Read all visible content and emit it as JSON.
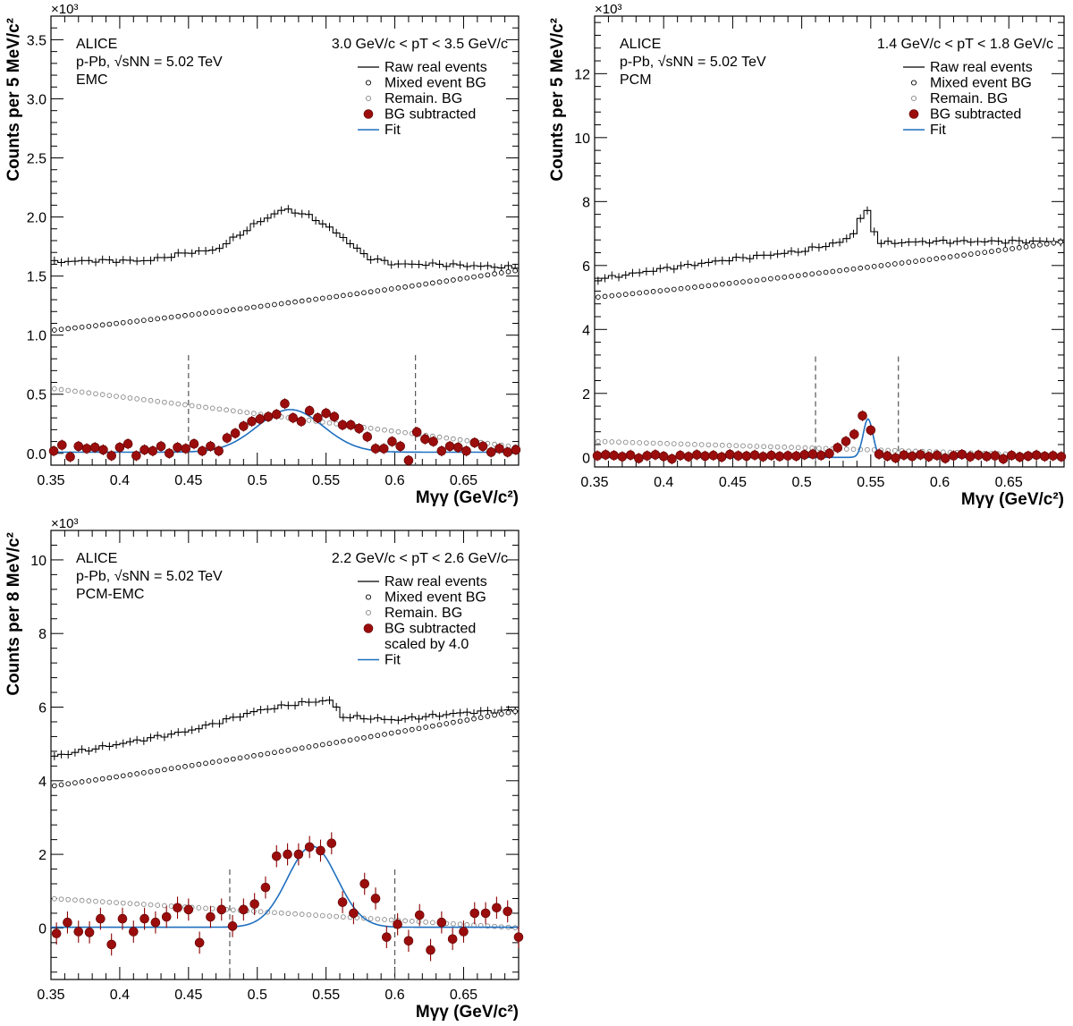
{
  "chart_data": [
    {
      "type": "scatter",
      "panel": "EMC",
      "xlabel": "Mγγ (GeV/c²)",
      "ylabel": "Counts per 5 MeV/c²",
      "multiplier": "×10³",
      "xlim": [
        0.35,
        0.69
      ],
      "ylim": [
        -0.1,
        3.7
      ],
      "xticks": [
        0.35,
        0.4,
        0.45,
        0.5,
        0.55,
        0.6,
        0.65
      ],
      "xtick_labels": [
        "0.35",
        "0.4",
        "0.45",
        "0.5",
        "0.55",
        "0.6",
        "0.65"
      ],
      "yticks": [
        0.0,
        0.5,
        1.0,
        1.5,
        2.0,
        2.5,
        3.0,
        3.5
      ],
      "ytick_labels": [
        "0.0",
        "0.5",
        "1.0",
        "1.5",
        "2.0",
        "2.5",
        "3.0",
        "3.5"
      ],
      "labels": [
        "ALICE",
        "p-Pb, √sNN = 5.02 TeV",
        "EMC"
      ],
      "pt_range": "3.0 GeV/c < pT < 3.5 GeV/c",
      "legend": [
        "Raw real events",
        "Mixed event BG",
        "Remain. BG",
        "BG subtracted",
        "Fit"
      ],
      "integration_window": [
        0.45,
        0.615
      ],
      "raw_anchors": [
        [
          0.35,
          1.62
        ],
        [
          0.38,
          1.63
        ],
        [
          0.42,
          1.63
        ],
        [
          0.45,
          1.7
        ],
        [
          0.47,
          1.72
        ],
        [
          0.5,
          1.95
        ],
        [
          0.52,
          2.07
        ],
        [
          0.54,
          2.0
        ],
        [
          0.56,
          1.85
        ],
        [
          0.58,
          1.66
        ],
        [
          0.6,
          1.6
        ],
        [
          0.63,
          1.6
        ],
        [
          0.69,
          1.57
        ]
      ],
      "mixed_bg": {
        "x0": 0.35,
        "x1": 0.69,
        "y0": 1.04,
        "y1": 1.55,
        "curv": -0.1
      },
      "remain_bg": {
        "x0": 0.35,
        "x1": 0.69,
        "y0": 0.55,
        "y1": 0.05,
        "curv": 0.02
      },
      "fit": {
        "A": 0.36,
        "mu": 0.524,
        "sigma": 0.024,
        "base": 0.01
      },
      "subtracted_x": [
        0.352,
        0.358,
        0.364,
        0.37,
        0.376,
        0.382,
        0.388,
        0.394,
        0.4,
        0.406,
        0.412,
        0.418,
        0.424,
        0.43,
        0.436,
        0.442,
        0.448,
        0.454,
        0.46,
        0.466,
        0.472,
        0.478,
        0.484,
        0.49,
        0.496,
        0.502,
        0.508,
        0.514,
        0.52,
        0.526,
        0.532,
        0.538,
        0.544,
        0.55,
        0.556,
        0.562,
        0.568,
        0.574,
        0.58,
        0.586,
        0.592,
        0.598,
        0.604,
        0.61,
        0.616,
        0.622,
        0.628,
        0.634,
        0.64,
        0.646,
        0.652,
        0.658,
        0.664,
        0.67,
        0.676,
        0.682,
        0.688
      ],
      "subtracted_y": [
        0.02,
        0.07,
        -0.03,
        0.06,
        0.04,
        0.05,
        0.03,
        -0.02,
        0.05,
        0.08,
        -0.02,
        0.03,
        0.02,
        0.06,
        0.0,
        0.05,
        0.04,
        0.08,
        0.02,
        0.06,
        0.02,
        0.13,
        0.17,
        0.23,
        0.27,
        0.29,
        0.31,
        0.33,
        0.42,
        0.3,
        0.27,
        0.36,
        0.3,
        0.34,
        0.31,
        0.24,
        0.24,
        0.21,
        0.14,
        0.04,
        0.04,
        0.1,
        0.06,
        -0.06,
        0.18,
        0.12,
        0.1,
        0.02,
        0.06,
        0.05,
        0.02,
        0.09,
        0.06,
        0.01,
        0.04,
        0.01,
        0.03
      ]
    },
    {
      "type": "scatter",
      "panel": "PCM",
      "xlabel": "Mγγ (GeV/c²)",
      "ylabel": "Counts per 5 MeV/c²",
      "multiplier": "×10³",
      "xlim": [
        0.35,
        0.69
      ],
      "ylim": [
        -0.3,
        13.8
      ],
      "xticks": [
        0.35,
        0.4,
        0.45,
        0.5,
        0.55,
        0.6,
        0.65
      ],
      "xtick_labels": [
        "0.35",
        "0.4",
        "0.45",
        "0.5",
        "0.55",
        "0.6",
        "0.65"
      ],
      "yticks": [
        0,
        2,
        4,
        6,
        8,
        10,
        12
      ],
      "ytick_labels": [
        "0",
        "2",
        "4",
        "6",
        "8",
        "10",
        "12"
      ],
      "labels": [
        "ALICE",
        "p-Pb, √sNN = 5.02 TeV",
        "PCM"
      ],
      "pt_range": "1.4 GeV/c < pT < 1.8 GeV/c",
      "legend": [
        "Raw real events",
        "Mixed event BG",
        "Remain. BG",
        "BG subtracted",
        "Fit"
      ],
      "integration_window": [
        0.51,
        0.57
      ],
      "raw_anchors": [
        [
          0.35,
          5.55
        ],
        [
          0.4,
          5.9
        ],
        [
          0.45,
          6.2
        ],
        [
          0.5,
          6.45
        ],
        [
          0.53,
          6.75
        ],
        [
          0.54,
          7.1
        ],
        [
          0.545,
          7.85
        ],
        [
          0.55,
          7.5
        ],
        [
          0.555,
          6.7
        ],
        [
          0.6,
          6.75
        ],
        [
          0.69,
          6.75
        ]
      ],
      "mixed_bg": {
        "x0": 0.35,
        "x1": 0.69,
        "y0": 5.0,
        "y1": 6.75,
        "curv": -0.3
      },
      "remain_bg": {
        "x0": 0.35,
        "x1": 0.69,
        "y0": 0.5,
        "y1": 0.05,
        "curv": 0.0
      },
      "fit": {
        "A": 1.2,
        "mu": 0.548,
        "sigma": 0.0035,
        "base": 0.0
      },
      "subtracted_x": [
        0.352,
        0.358,
        0.364,
        0.37,
        0.376,
        0.382,
        0.388,
        0.394,
        0.4,
        0.406,
        0.412,
        0.418,
        0.424,
        0.43,
        0.436,
        0.442,
        0.448,
        0.454,
        0.46,
        0.466,
        0.472,
        0.478,
        0.484,
        0.49,
        0.496,
        0.502,
        0.508,
        0.514,
        0.52,
        0.526,
        0.532,
        0.538,
        0.544,
        0.55,
        0.556,
        0.562,
        0.568,
        0.574,
        0.58,
        0.586,
        0.592,
        0.598,
        0.604,
        0.61,
        0.616,
        0.622,
        0.628,
        0.634,
        0.64,
        0.646,
        0.652,
        0.658,
        0.664,
        0.67,
        0.676,
        0.682,
        0.688
      ],
      "subtracted_y": [
        0.05,
        0.08,
        0.06,
        0.02,
        0.07,
        -0.03,
        0.05,
        0.08,
        0.03,
        -0.05,
        0.06,
        0.02,
        0.08,
        0.04,
        0.06,
        0.01,
        0.09,
        0.05,
        0.04,
        0.07,
        0.02,
        0.06,
        0.03,
        0.05,
        0.04,
        0.08,
        0.1,
        0.06,
        0.12,
        0.3,
        0.5,
        0.72,
        1.3,
        0.85,
        0.1,
        0.04,
        -0.02,
        0.07,
        0.03,
        0.08,
        0.02,
        0.06,
        -0.03,
        0.05,
        0.09,
        0.02,
        0.07,
        0.03,
        0.05,
        -0.05,
        0.06,
        0.01,
        0.04,
        0.07,
        0.03,
        0.05,
        0.02
      ]
    },
    {
      "type": "scatter",
      "panel": "PCM-EMC",
      "xlabel": "Mγγ (GeV/c²)",
      "ylabel": "Counts per 8 MeV/c²",
      "multiplier": "×10³",
      "xlim": [
        0.35,
        0.69
      ],
      "ylim": [
        -1.4,
        10.8
      ],
      "xticks": [
        0.35,
        0.4,
        0.45,
        0.5,
        0.55,
        0.6,
        0.65
      ],
      "xtick_labels": [
        "0.35",
        "0.4",
        "0.45",
        "0.5",
        "0.55",
        "0.6",
        "0.65"
      ],
      "yticks": [
        0,
        2,
        4,
        6,
        8,
        10
      ],
      "ytick_labels": [
        "0",
        "2",
        "4",
        "6",
        "8",
        "10"
      ],
      "labels": [
        "ALICE",
        "p-Pb, √sNN = 5.02 TeV",
        "PCM-EMC"
      ],
      "pt_range": "2.2 GeV/c < pT < 2.6 GeV/c",
      "legend": [
        "Raw real events",
        "Mixed event BG",
        "Remain. BG",
        "BG subtracted",
        "scaled by 4.0",
        "Fit"
      ],
      "integration_window": [
        0.48,
        0.6
      ],
      "raw_anchors": [
        [
          0.35,
          4.65
        ],
        [
          0.4,
          5.0
        ],
        [
          0.45,
          5.35
        ],
        [
          0.5,
          5.9
        ],
        [
          0.53,
          6.1
        ],
        [
          0.555,
          6.2
        ],
        [
          0.56,
          5.75
        ],
        [
          0.6,
          5.65
        ],
        [
          0.65,
          5.85
        ],
        [
          0.69,
          5.92
        ]
      ],
      "mixed_bg": {
        "x0": 0.35,
        "x1": 0.69,
        "y0": 3.85,
        "y1": 5.9,
        "curv": -0.25
      },
      "remain_bg": {
        "x0": 0.35,
        "x1": 0.69,
        "y0": 0.8,
        "y1": 0.0,
        "curv": 0.0
      },
      "fit": {
        "A": 2.2,
        "mu": 0.54,
        "sigma": 0.018,
        "base": 0.02
      },
      "subtracted_x": [
        0.354,
        0.362,
        0.37,
        0.378,
        0.386,
        0.394,
        0.402,
        0.41,
        0.418,
        0.426,
        0.434,
        0.442,
        0.45,
        0.458,
        0.466,
        0.474,
        0.482,
        0.49,
        0.498,
        0.506,
        0.514,
        0.522,
        0.53,
        0.538,
        0.546,
        0.554,
        0.562,
        0.57,
        0.578,
        0.586,
        0.594,
        0.602,
        0.61,
        0.618,
        0.626,
        0.634,
        0.642,
        0.65,
        0.658,
        0.666,
        0.674,
        0.682,
        0.69
      ],
      "subtracted_y": [
        -0.15,
        0.15,
        -0.1,
        -0.12,
        0.25,
        -0.45,
        0.25,
        -0.1,
        0.25,
        0.15,
        0.3,
        0.55,
        0.5,
        -0.4,
        0.3,
        0.5,
        0.05,
        0.5,
        0.65,
        1.1,
        1.95,
        2.0,
        2.0,
        2.2,
        2.1,
        2.3,
        0.7,
        0.4,
        1.2,
        0.8,
        -0.25,
        0.1,
        -0.35,
        0.35,
        -0.6,
        0.15,
        -0.3,
        -0.1,
        0.4,
        0.4,
        0.55,
        0.45,
        -0.25
      ]
    }
  ]
}
